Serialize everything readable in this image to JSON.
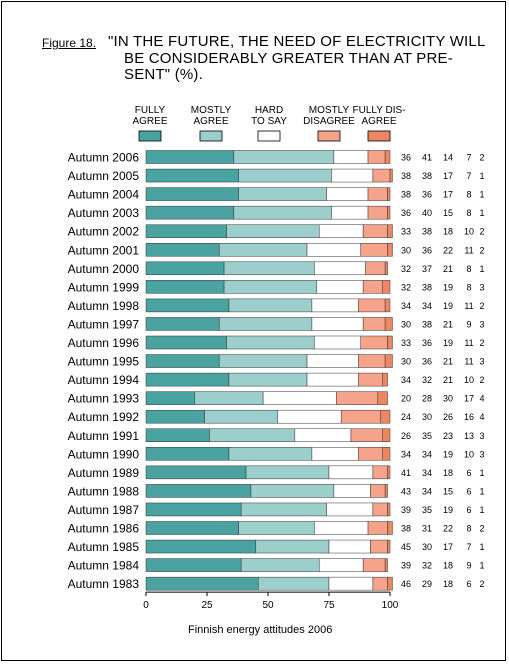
{
  "figure": {
    "label": "Figure 18.",
    "title_lines": [
      "\"IN THE FUTURE, THE NEED OF ELECTRICITY WILL",
      "BE CONSIDERABLY GREATER THAN AT  PRE-",
      "SENT\" (%)."
    ],
    "footnote": "Finnish energy attitudes 2006"
  },
  "chart_data": {
    "type": "bar",
    "orientation": "horizontal",
    "stacked": true,
    "xlim": [
      0,
      100
    ],
    "xticks": [
      "0",
      "25",
      "50",
      "75",
      "100"
    ],
    "grid": false,
    "legend_position": "top",
    "categories": [
      "Autumn 2006",
      "Autumn 2005",
      "Autumn 2004",
      "Autumn 2003",
      "Autumn 2002",
      "Autumn 2001",
      "Autumn 2000",
      "Autumn 1999",
      "Autumn 1998",
      "Autumn 1997",
      "Autumn 1996",
      "Autumn 1995",
      "Autumn 1994",
      "Autumn 1993",
      "Autumn 1992",
      "Autumn 1991",
      "Autumn 1990",
      "Autumn 1989",
      "Autumn 1988",
      "Autumn 1987",
      "Autumn 1986",
      "Autumn 1985",
      "Autumn 1984",
      "Autumn 1983"
    ],
    "series": [
      {
        "name": [
          "FULLY",
          "AGREE"
        ],
        "color": "#4aa3a0",
        "values": [
          36,
          38,
          38,
          36,
          33,
          30,
          32,
          32,
          34,
          30,
          33,
          30,
          34,
          20,
          24,
          26,
          34,
          41,
          43,
          39,
          38,
          45,
          39,
          46
        ]
      },
      {
        "name": [
          "MOSTLY",
          "AGREE"
        ],
        "color": "#9ccfcc",
        "values": [
          41,
          38,
          36,
          40,
          38,
          36,
          37,
          38,
          34,
          38,
          36,
          36,
          32,
          28,
          30,
          35,
          34,
          34,
          34,
          35,
          31,
          30,
          32,
          29
        ]
      },
      {
        "name": [
          "HARD",
          "TO SAY"
        ],
        "color": "#ffffff",
        "values": [
          14,
          17,
          17,
          15,
          18,
          22,
          21,
          19,
          19,
          21,
          19,
          21,
          21,
          30,
          26,
          23,
          19,
          18,
          15,
          19,
          22,
          17,
          18,
          18
        ]
      },
      {
        "name": [
          "MOSTLY",
          "DISAGREE"
        ],
        "color": "#f6a38c",
        "values": [
          7,
          7,
          8,
          8,
          10,
          11,
          8,
          8,
          11,
          9,
          11,
          11,
          10,
          17,
          16,
          13,
          10,
          6,
          6,
          6,
          8,
          7,
          9,
          6
        ]
      },
      {
        "name": [
          "FULLY DIS-",
          "AGREE"
        ],
        "color": "#ee8663",
        "values": [
          2,
          1,
          1,
          1,
          2,
          2,
          1,
          3,
          2,
          3,
          2,
          3,
          2,
          4,
          4,
          3,
          3,
          1,
          1,
          1,
          2,
          1,
          1,
          2
        ]
      }
    ]
  }
}
